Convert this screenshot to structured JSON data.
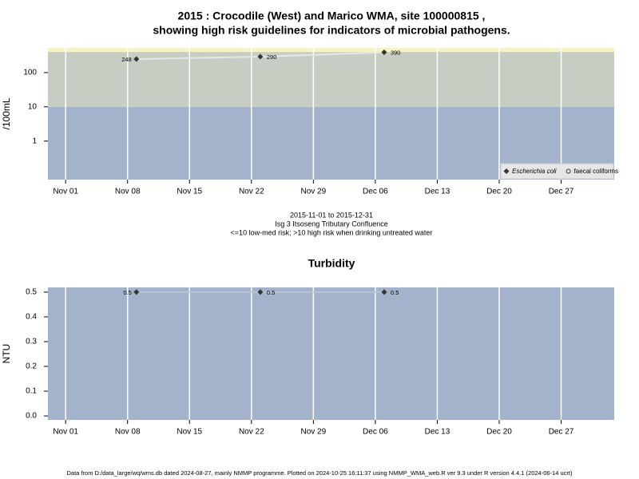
{
  "chart_data": [
    {
      "type": "line",
      "title": [
        "2015 : Crocodile (West) and Marico WMA, site 100000815 ,",
        "showing high risk guidelines for indicators of microbial pathogens."
      ],
      "ylabel": "/100mL",
      "notes": [
        "2015-11-01 to 2015-12-31",
        "Isg 3 Itsoseng Tributary Confluence",
        "<=10 low-med risk; >10 high risk when drinking untreated water"
      ],
      "log_y": true,
      "x": [
        "2015-11-09",
        "2015-11-23",
        "2015-12-07"
      ],
      "series": [
        {
          "name": "Escherichia coli",
          "color": "#333333",
          "line_color": "#e4e8e4",
          "marker": "diamond",
          "values": [
            248,
            290,
            390
          ]
        },
        {
          "name": "faecal coliforms",
          "color": "#333333",
          "line_color": "#e4e8e4",
          "marker": "circle",
          "values": [
            null,
            null,
            null
          ]
        }
      ],
      "bands": [
        {
          "from": 0.075,
          "to": 10,
          "color": "#a3b3cb"
        },
        {
          "from": 10,
          "to": 400,
          "color": "#c6cec3"
        },
        {
          "from": 400,
          "to": 525,
          "color": "#f7f3c8"
        }
      ],
      "xlim": [
        "2015-10-30",
        "2016-01-02"
      ],
      "xticks": [
        {
          "value": "2015-11-01",
          "label": "Nov 01"
        },
        {
          "value": "2015-11-08",
          "label": "Nov 08"
        },
        {
          "value": "2015-11-15",
          "label": "Nov 15"
        },
        {
          "value": "2015-11-22",
          "label": "Nov 22"
        },
        {
          "value": "2015-11-29",
          "label": "Nov 29"
        },
        {
          "value": "2015-12-06",
          "label": "Dec 06"
        },
        {
          "value": "2015-12-13",
          "label": "Dec 13"
        },
        {
          "value": "2015-12-20",
          "label": "Dec 20"
        },
        {
          "value": "2015-12-27",
          "label": "Dec 27"
        }
      ],
      "ylim": [
        0.075,
        525
      ],
      "yticks": [
        1,
        10,
        100
      ],
      "grid": true,
      "legend": "bottom-right"
    },
    {
      "type": "line",
      "title": [
        "Turbidity"
      ],
      "ylabel": "NTU",
      "log_y": false,
      "x": [
        "2015-11-09",
        "2015-11-23",
        "2015-12-07"
      ],
      "series": [
        {
          "name": "Turbidity",
          "color": "#333333",
          "line_color": "#b8c5d8",
          "marker": "diamond",
          "values": [
            0.5,
            0.5,
            0.5
          ]
        }
      ],
      "bands": [
        {
          "from": -0.016,
          "to": 0.519,
          "color": "#a3b3cb"
        }
      ],
      "xlim": [
        "2015-10-30",
        "2016-01-02"
      ],
      "xticks": [
        {
          "value": "2015-11-01",
          "label": "Nov 01"
        },
        {
          "value": "2015-11-08",
          "label": "Nov 08"
        },
        {
          "value": "2015-11-15",
          "label": "Nov 15"
        },
        {
          "value": "2015-11-22",
          "label": "Nov 22"
        },
        {
          "value": "2015-11-29",
          "label": "Nov 29"
        },
        {
          "value": "2015-12-06",
          "label": "Dec 06"
        },
        {
          "value": "2015-12-13",
          "label": "Dec 13"
        },
        {
          "value": "2015-12-20",
          "label": "Dec 20"
        },
        {
          "value": "2015-12-27",
          "label": "Dec 27"
        }
      ],
      "ylim": [
        -0.016,
        0.519
      ],
      "yticks": [
        {
          "value": 0,
          "label": "0.0"
        },
        0.1,
        0.2,
        0.3,
        0.4,
        0.5
      ],
      "grid": true
    }
  ],
  "footer": "Data from D:/data_large/wq/wms.db dated 2024-08-27, mainly NMMP programme. Plotted on 2024-10-25 16:11:37 using NMMP_WMA_web.R ver 9.3 under R version 4.4.1 (2024-06-14 ucrt)"
}
